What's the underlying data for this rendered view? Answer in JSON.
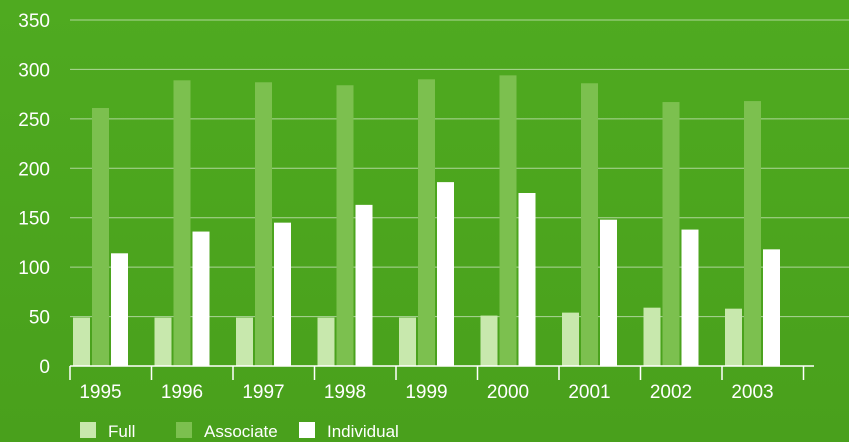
{
  "chart_data": {
    "type": "bar",
    "title": "",
    "xlabel": "",
    "ylabel": "",
    "categories": [
      "1995",
      "1996",
      "1997",
      "1998",
      "1999",
      "2000",
      "2001",
      "2002",
      "2003"
    ],
    "series": [
      {
        "name": "Full",
        "color": "#c8e8ad",
        "values": [
          49,
          49,
          49,
          49,
          49,
          51,
          54,
          59,
          58
        ]
      },
      {
        "name": "Associate",
        "color": "#7cc04f",
        "values": [
          261,
          289,
          287,
          284,
          290,
          294,
          286,
          267,
          268
        ]
      },
      {
        "name": "Individual",
        "color": "#ffffff",
        "values": [
          114,
          136,
          145,
          163,
          186,
          175,
          148,
          138,
          118
        ]
      }
    ],
    "ylim": [
      0,
      350
    ],
    "yticks": [
      0,
      50,
      100,
      150,
      200,
      250,
      300,
      350
    ],
    "grid": true,
    "legend": "bottom-left"
  }
}
